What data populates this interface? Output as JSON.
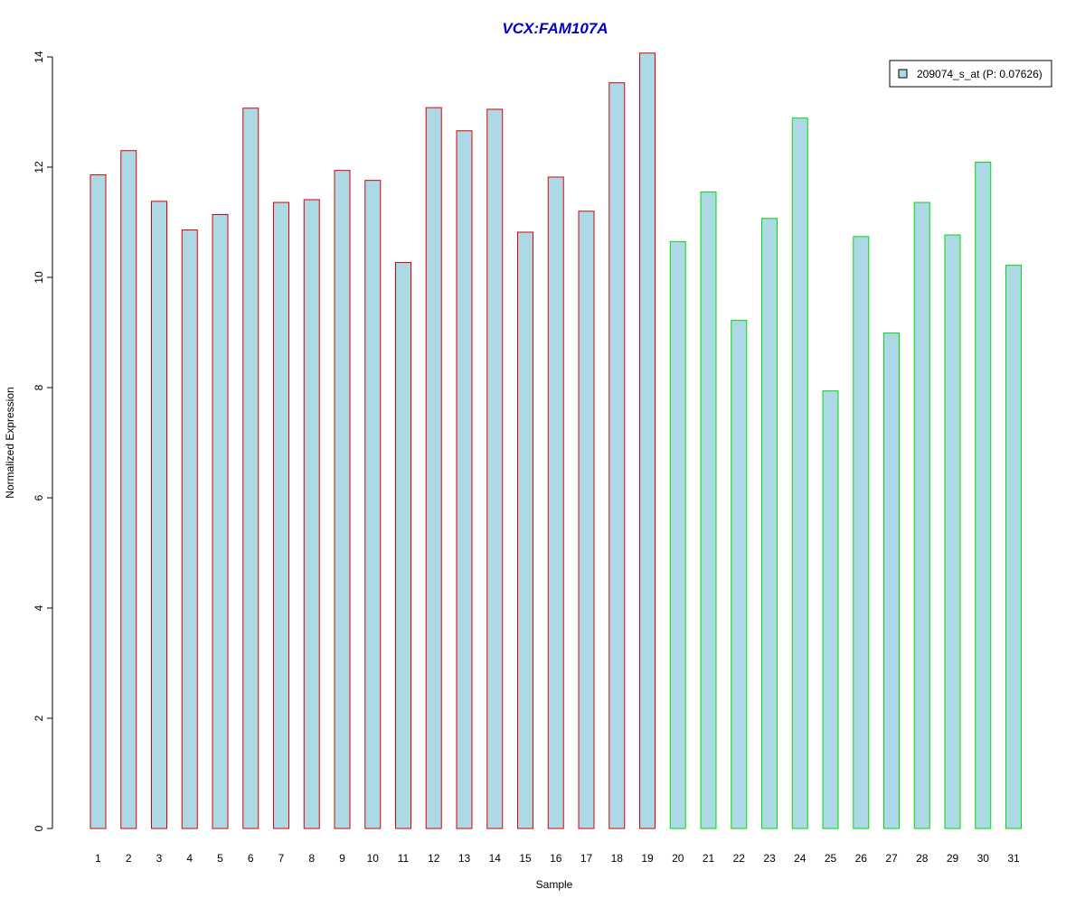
{
  "chart_data": {
    "type": "bar",
    "title": "VCX:FAM107A",
    "xlabel": "Sample",
    "ylabel": "Normalized Expression",
    "ylim": [
      0,
      14
    ],
    "yticks": [
      "0",
      "2",
      "4",
      "6",
      "8",
      "10",
      "12",
      "14"
    ],
    "grid": false,
    "legend": {
      "placement": "top-right",
      "label": "209074_s_at (P: 0.07626)"
    },
    "categories": [
      "1",
      "2",
      "3",
      "4",
      "5",
      "6",
      "7",
      "8",
      "9",
      "10",
      "11",
      "12",
      "13",
      "14",
      "15",
      "16",
      "17",
      "18",
      "19",
      "20",
      "21",
      "22",
      "23",
      "24",
      "25",
      "26",
      "27",
      "28",
      "29",
      "30",
      "31"
    ],
    "series": [
      {
        "values": [
          11.86,
          12.3,
          11.38,
          10.86,
          11.14,
          13.07,
          11.36,
          11.41,
          11.94,
          11.76,
          10.27,
          13.08,
          12.66,
          13.05,
          10.82,
          11.82,
          11.2,
          13.53,
          14.07,
          10.65,
          11.55,
          9.22,
          11.07,
          12.89,
          7.94,
          10.74,
          8.99,
          11.36,
          10.77,
          12.09,
          10.22
        ]
      }
    ],
    "groups": [
      1,
      1,
      1,
      1,
      1,
      1,
      1,
      1,
      1,
      1,
      1,
      1,
      1,
      1,
      1,
      1,
      1,
      1,
      1,
      2,
      2,
      2,
      2,
      2,
      2,
      2,
      2,
      2,
      2,
      2,
      2
    ],
    "colors": {
      "title": "#0000cc",
      "bar_fill": "#add8e6",
      "group1_border": "#dd0000",
      "group2_border": "#00dd00",
      "axis": "#000000"
    }
  }
}
